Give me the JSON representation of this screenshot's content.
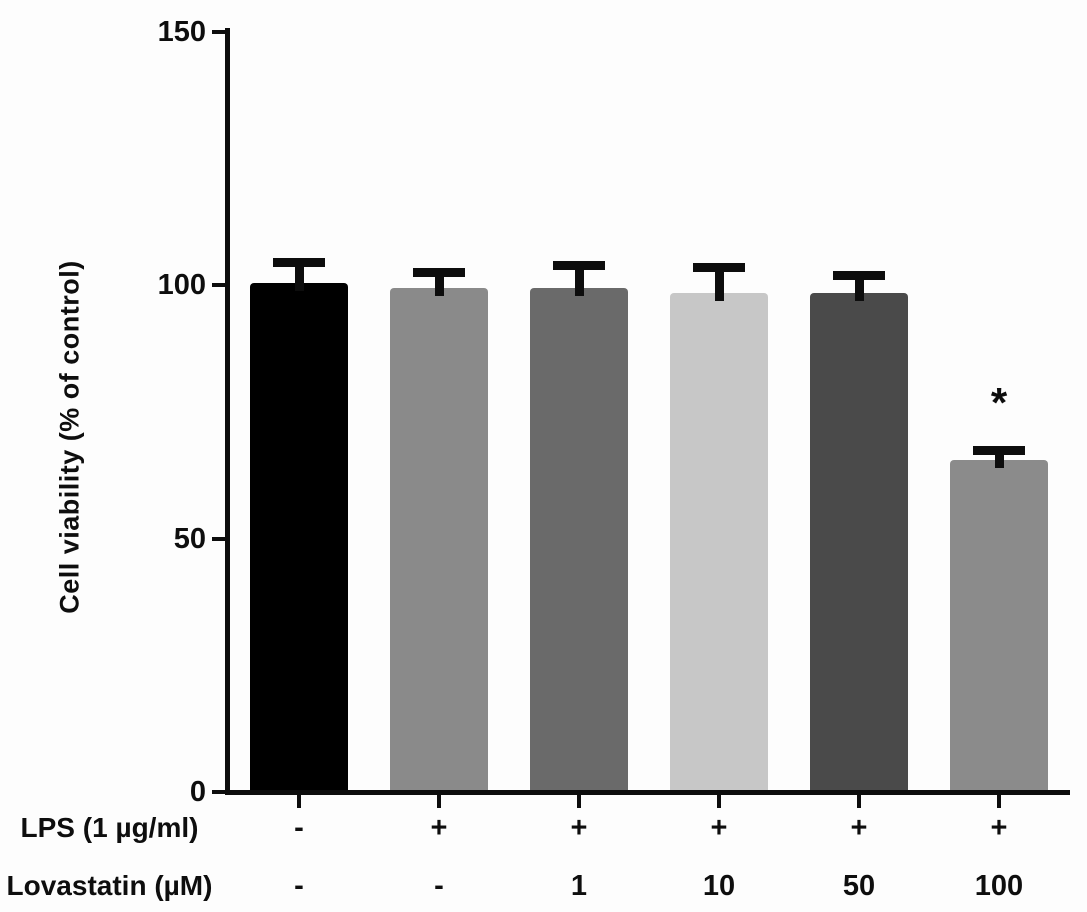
{
  "chart_data": {
    "type": "bar",
    "title": "",
    "xlabel": "",
    "ylabel": "Cell viability (% of control)",
    "ylim": [
      0,
      150
    ],
    "yticks": [
      0,
      50,
      100,
      150
    ],
    "grid": false,
    "legend": "none",
    "axis_color": "#0d0d0d",
    "error_bar_color": "#0d0d0d",
    "bars": [
      {
        "value": 100,
        "error": 4,
        "color": "#000000"
      },
      {
        "value": 99,
        "error": 3,
        "color": "#8a8a8a"
      },
      {
        "value": 99,
        "error": 4.5,
        "color": "#6a6a6a"
      },
      {
        "value": 98,
        "error": 5,
        "color": "#c7c7c7"
      },
      {
        "value": 98,
        "error": 3.5,
        "color": "#4a4a4a"
      },
      {
        "value": 65,
        "error": 2,
        "color": "#8b8b8b"
      }
    ],
    "significance": [
      {
        "bar_index": 5,
        "symbol": "*"
      }
    ],
    "x_rows": [
      {
        "label": "LPS (1 µg/ml)",
        "values": [
          "-",
          "+",
          "+",
          "+",
          "+",
          "+"
        ]
      },
      {
        "label": "Lovastatin (µM)",
        "values": [
          "-",
          "-",
          "1",
          "10",
          "50",
          "100"
        ]
      }
    ]
  }
}
